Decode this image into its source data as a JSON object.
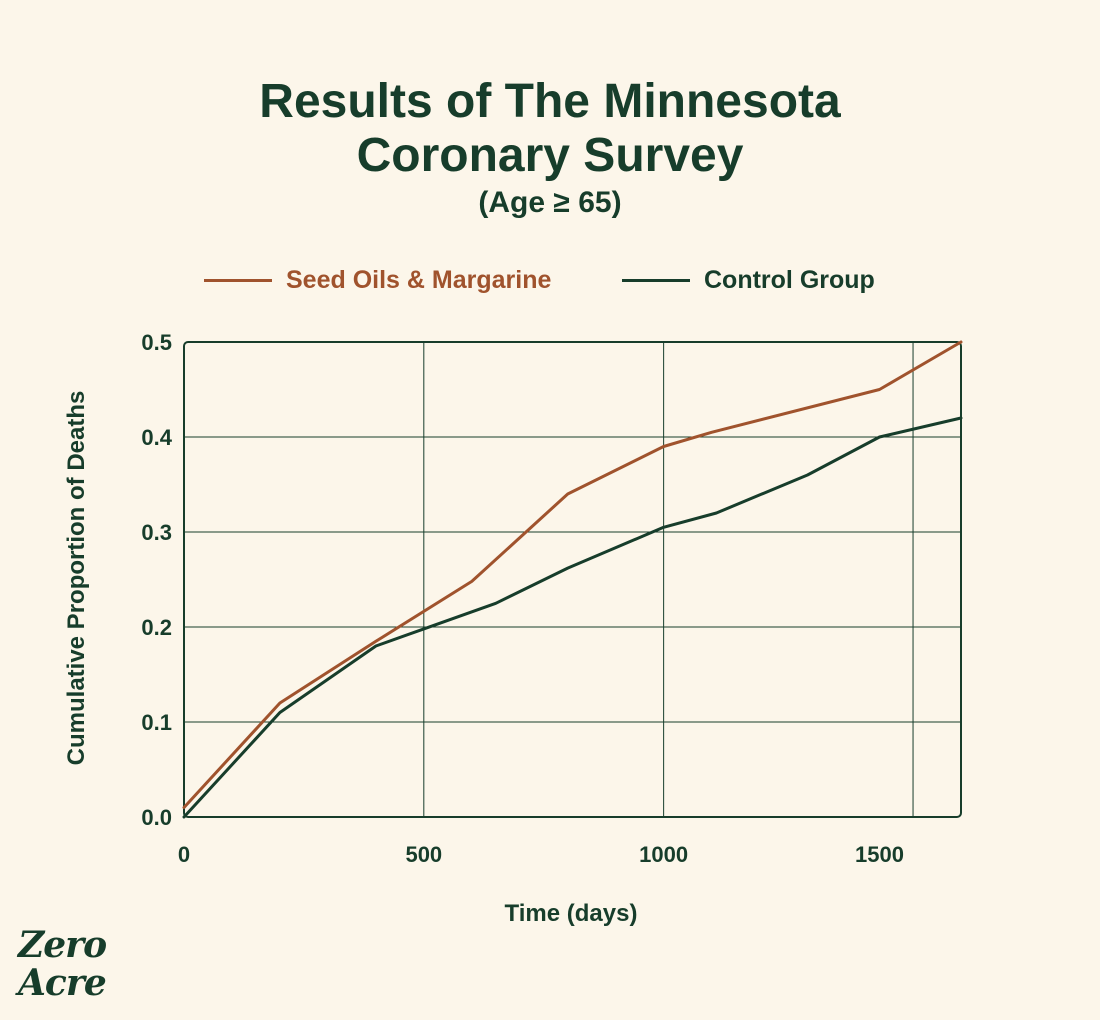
{
  "title_lines": [
    "Results of The Minnesota",
    "Coronary Survey"
  ],
  "subtitle": "(Age ≥ 65)",
  "logo_lines": [
    "Zero",
    "Acre"
  ],
  "colors": {
    "background": "#fcf6ea",
    "seed_oils": "#a0532d",
    "control": "#173d2b",
    "grid": "#173d2b"
  },
  "chart_data": {
    "type": "line",
    "title": "Results of The Minnesota Coronary Survey",
    "subtitle": "(Age ≥ 65)",
    "xlabel": "Time (days)",
    "ylabel": "Cumulative Proportion of Deaths",
    "xlim": [
      0,
      1620
    ],
    "ylim": [
      0,
      0.5
    ],
    "x_ticks": [
      0,
      500,
      1000,
      1500
    ],
    "x_tick_labels": [
      "0",
      "500",
      "1000",
      "1500"
    ],
    "y_ticks": [
      0.0,
      0.1,
      0.2,
      0.3,
      0.4,
      0.5
    ],
    "y_tick_labels": [
      "0.0",
      "0.1",
      "0.2",
      "0.3",
      "0.4",
      "0.5"
    ],
    "x_gridlines": [
      500,
      1000,
      1520
    ],
    "grid": true,
    "legend_position": "top",
    "series": [
      {
        "name": "Seed Oils & Margarine",
        "color": "#a0532d",
        "x": [
          0,
          200,
          400,
          600,
          800,
          1000,
          1100,
          1450,
          1620
        ],
        "y": [
          0.01,
          0.12,
          0.185,
          0.248,
          0.34,
          0.39,
          0.405,
          0.45,
          0.5
        ]
      },
      {
        "name": "Control Group",
        "color": "#173d2b",
        "x": [
          0,
          200,
          400,
          500,
          650,
          800,
          1000,
          1110,
          1300,
          1450,
          1620
        ],
        "y": [
          0.0,
          0.11,
          0.18,
          0.198,
          0.225,
          0.262,
          0.305,
          0.32,
          0.36,
          0.4,
          0.42
        ]
      }
    ]
  }
}
